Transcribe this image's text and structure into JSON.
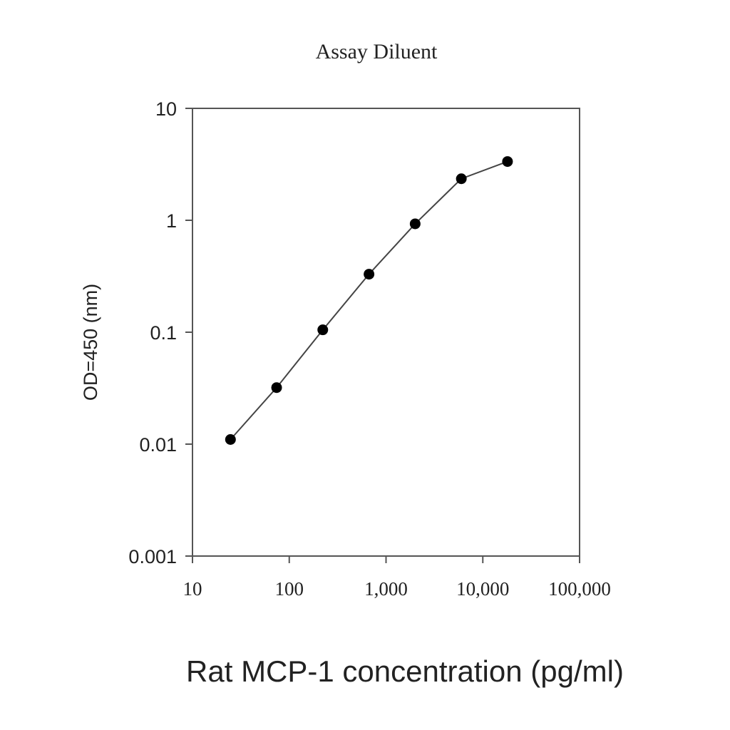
{
  "chart_data": {
    "type": "line",
    "title": "Assay Diluent",
    "xlabel": "Rat MCP-1 concentration (pg/ml)",
    "ylabel": "OD=450 (nm)",
    "x_scale": "log",
    "y_scale": "log",
    "xlim": [
      10,
      100000
    ],
    "ylim": [
      0.001,
      10
    ],
    "x_tick_labels": [
      "10",
      "100",
      "1,000",
      "10,000",
      "100,000"
    ],
    "y_tick_labels": [
      "10",
      "1",
      "0.1",
      "0.01",
      "0.001"
    ],
    "grid": false,
    "legend": false,
    "series": [
      {
        "x": [
          24.7,
          74,
          222,
          667,
          2000,
          6000,
          18000
        ],
        "y": [
          0.011,
          0.032,
          0.105,
          0.33,
          0.93,
          2.35,
          3.35
        ]
      }
    ]
  }
}
